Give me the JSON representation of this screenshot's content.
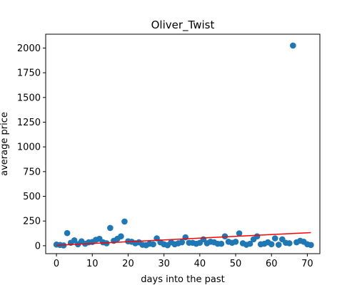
{
  "chart_data": {
    "type": "scatter",
    "title": "Oliver_Twist",
    "xlabel": "days into the past",
    "ylabel": "average price",
    "xlim": [
      -3,
      73.5
    ],
    "ylim": [
      -80,
      2140
    ],
    "xticks": [
      0,
      10,
      20,
      30,
      40,
      50,
      60,
      70
    ],
    "yticks": [
      0,
      250,
      500,
      750,
      1000,
      1250,
      1500,
      1750,
      2000
    ],
    "grid": false,
    "point_color": "#1f77b4",
    "trend_color": "#ff0000",
    "series": [
      {
        "points": [
          [
            0,
            12
          ],
          [
            1,
            8
          ],
          [
            2,
            3
          ],
          [
            3,
            128
          ],
          [
            4,
            30
          ],
          [
            5,
            55
          ],
          [
            6,
            15
          ],
          [
            7,
            45
          ],
          [
            8,
            20
          ],
          [
            9,
            35
          ],
          [
            10,
            38
          ],
          [
            11,
            60
          ],
          [
            12,
            70
          ],
          [
            13,
            35
          ],
          [
            14,
            25
          ],
          [
            15,
            180
          ],
          [
            16,
            50
          ],
          [
            17,
            70
          ],
          [
            18,
            95
          ],
          [
            19,
            245
          ],
          [
            20,
            45
          ],
          [
            21,
            40
          ],
          [
            22,
            25
          ],
          [
            23,
            35
          ],
          [
            24,
            10
          ],
          [
            25,
            5
          ],
          [
            26,
            20
          ],
          [
            27,
            15
          ],
          [
            28,
            75
          ],
          [
            29,
            35
          ],
          [
            30,
            15
          ],
          [
            31,
            5
          ],
          [
            32,
            35
          ],
          [
            33,
            15
          ],
          [
            34,
            25
          ],
          [
            35,
            35
          ],
          [
            36,
            85
          ],
          [
            37,
            30
          ],
          [
            38,
            30
          ],
          [
            39,
            20
          ],
          [
            40,
            30
          ],
          [
            41,
            65
          ],
          [
            42,
            25
          ],
          [
            43,
            40
          ],
          [
            44,
            35
          ],
          [
            45,
            20
          ],
          [
            46,
            20
          ],
          [
            47,
            95
          ],
          [
            48,
            40
          ],
          [
            49,
            30
          ],
          [
            50,
            40
          ],
          [
            51,
            125
          ],
          [
            52,
            25
          ],
          [
            53,
            10
          ],
          [
            54,
            20
          ],
          [
            55,
            65
          ],
          [
            56,
            95
          ],
          [
            57,
            15
          ],
          [
            58,
            20
          ],
          [
            59,
            35
          ],
          [
            60,
            15
          ],
          [
            61,
            75
          ],
          [
            62,
            10
          ],
          [
            63,
            65
          ],
          [
            64,
            30
          ],
          [
            65,
            25
          ],
          [
            66,
            2025
          ],
          [
            67,
            35
          ],
          [
            68,
            50
          ],
          [
            69,
            40
          ],
          [
            70,
            15
          ],
          [
            71,
            8
          ]
        ]
      }
    ],
    "trend_line": {
      "x": [
        0,
        71
      ],
      "y": [
        5,
        133
      ]
    }
  }
}
